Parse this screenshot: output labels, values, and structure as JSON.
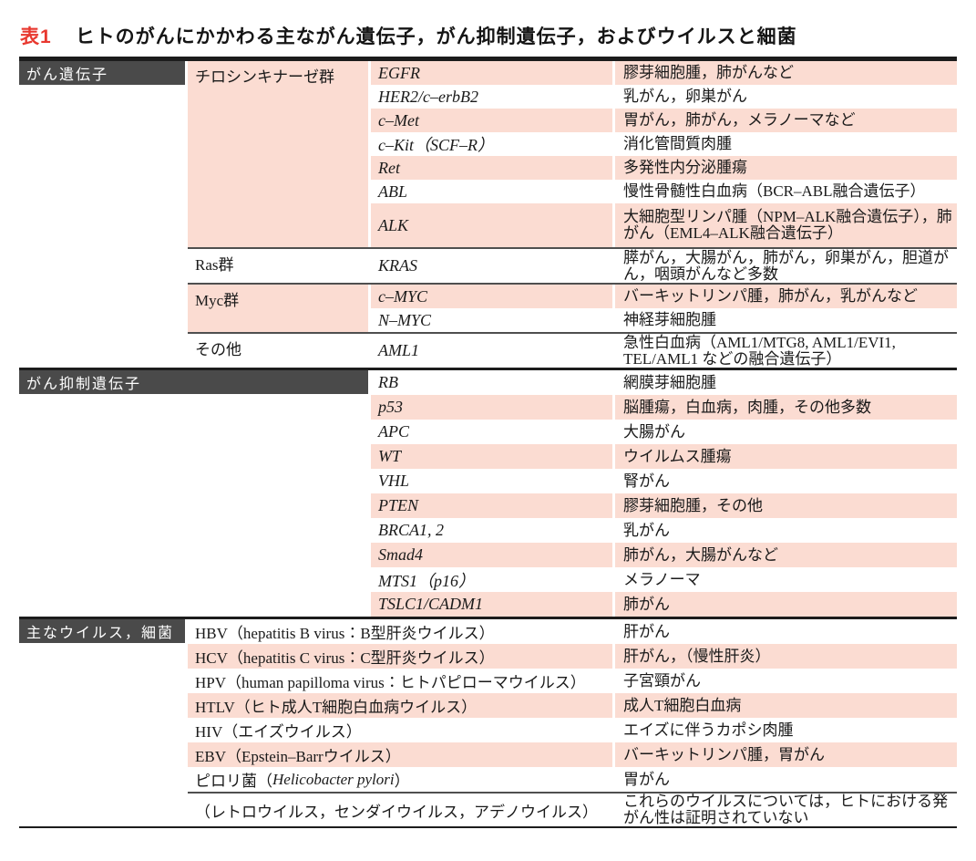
{
  "header": {
    "table_label": "表1",
    "title": "ヒトのがんにかかわる主ながん遺伝子，がん抑制遺伝子，およびウイルスと細菌"
  },
  "colors": {
    "accent_red": "#e8382f",
    "row_pink": "#fbdcd2",
    "section_header_bg": "#4a4a4a",
    "border_dark": "#1c1c1c",
    "separator_gray": "#4f4f4f"
  },
  "sections": {
    "oncogenes": {
      "header": "がん遺伝子",
      "groups": [
        {
          "label": "チロシンキナーゼ群",
          "rows": [
            {
              "gene": "EGFR",
              "disease": "膠芽細胞腫，肺がんなど"
            },
            {
              "gene": "HER2/c–erbB2",
              "disease": "乳がん，卵巣がん"
            },
            {
              "gene": "c–Met",
              "disease": "胃がん，肺がん，メラノーマなど"
            },
            {
              "gene": "c–Kit（SCF–R）",
              "disease": "消化管間質肉腫"
            },
            {
              "gene": "Ret",
              "disease": "多発性内分泌腫瘍"
            },
            {
              "gene": "ABL",
              "disease": "慢性骨髄性白血病（BCR–ABL融合遺伝子）"
            },
            {
              "gene": "ALK",
              "disease": "大細胞型リンパ腫（NPM–ALK融合遺伝子），肺がん（EML4–ALK融合遺伝子）"
            }
          ]
        },
        {
          "label": "Ras群",
          "rows": [
            {
              "gene": "KRAS",
              "disease": "膵がん，大腸がん，肺がん，卵巣がん，胆道がん，咽頭がんなど多数"
            }
          ]
        },
        {
          "label": "Myc群",
          "rows": [
            {
              "gene": "c–MYC",
              "disease": "バーキットリンパ腫，肺がん，乳がんなど"
            },
            {
              "gene": "N–MYC",
              "disease": "神経芽細胞腫"
            }
          ]
        },
        {
          "label": "その他",
          "rows": [
            {
              "gene": "AML1",
              "disease": "急性白血病（AML1/MTG8, AML1/EVI1, TEL/AML1 などの融合遺伝子）"
            }
          ]
        }
      ]
    },
    "suppressors": {
      "header": "がん抑制遺伝子",
      "rows": [
        {
          "gene": "RB",
          "disease": "網膜芽細胞腫"
        },
        {
          "gene": "p53",
          "disease": "脳腫瘍，白血病，肉腫，その他多数"
        },
        {
          "gene": "APC",
          "disease": "大腸がん"
        },
        {
          "gene": "WT",
          "disease": "ウイルムス腫瘍"
        },
        {
          "gene": "VHL",
          "disease": "腎がん"
        },
        {
          "gene": "PTEN",
          "disease": "膠芽細胞腫，その他"
        },
        {
          "gene": "BRCA1, 2",
          "disease": "乳がん"
        },
        {
          "gene": "Smad4",
          "disease": "肺がん，大腸がんなど"
        },
        {
          "gene": "MTS1（p16）",
          "disease": "メラノーマ"
        },
        {
          "gene": "TSLC1/CADM1",
          "disease": "肺がん"
        }
      ]
    },
    "viruses": {
      "header": "主なウイルス，細菌",
      "rows": [
        {
          "name": "HBV（hepatitis B virus：B型肝炎ウイルス）",
          "disease": "肝がん"
        },
        {
          "name": "HCV（hepatitis C virus：C型肝炎ウイルス）",
          "disease": "肝がん，（慢性肝炎）"
        },
        {
          "name": "HPV（human papilloma virus：ヒトパピローマウイルス）",
          "disease": "子宮頸がん"
        },
        {
          "name": "HTLV（ヒト成人T細胞白血病ウイルス）",
          "disease": "成人T細胞白血病"
        },
        {
          "name": "HIV（エイズウイルス）",
          "disease": "エイズに伴うカポシ肉腫"
        },
        {
          "name": "EBV（Epstein–Barrウイルス）",
          "disease": "バーキットリンパ腫，胃がん"
        },
        {
          "name_pre": "ピロリ菌（",
          "name_italic": "Helicobacter pylori",
          "name_suf": "）",
          "disease": "胃がん"
        },
        {
          "name": "（レトロウイルス，センダイウイルス，アデノウイルス）",
          "disease": "これらのウイルスについては，ヒトにおける発がん性は証明されていない"
        }
      ]
    }
  }
}
